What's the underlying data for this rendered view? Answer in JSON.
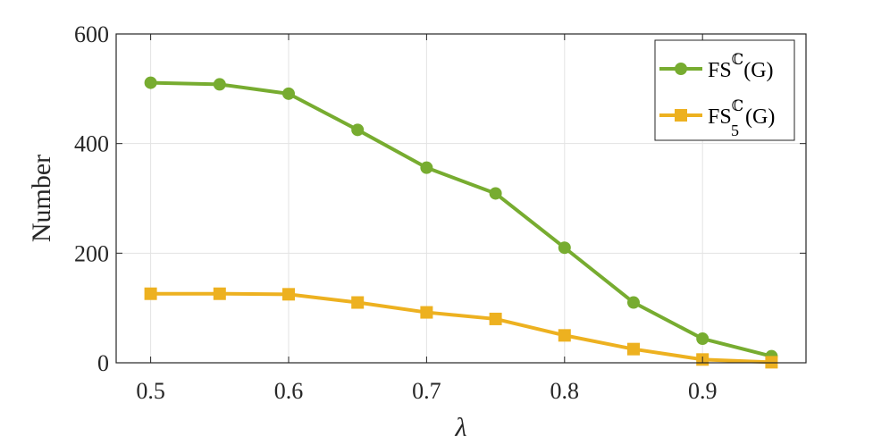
{
  "chart_data": {
    "type": "line",
    "x": [
      0.5,
      0.55,
      0.6,
      0.65,
      0.7,
      0.75,
      0.8,
      0.85,
      0.9,
      0.95
    ],
    "series": [
      {
        "name": "FSℂ(G)",
        "name_main": "FS",
        "name_sup": "ℂ",
        "name_sub": "",
        "name_tail": "(G)",
        "color": "#77AC30",
        "marker": "circle",
        "values": [
          511,
          508,
          491,
          425,
          356,
          309,
          210,
          110,
          44,
          12
        ]
      },
      {
        "name": "FS₅ℂ(G)",
        "name_main": "FS",
        "name_sup": "ℂ",
        "name_sub": "5",
        "name_tail": "(G)",
        "color": "#EDB120",
        "marker": "square",
        "values": [
          126,
          126,
          125,
          110,
          92,
          80,
          50,
          25,
          6,
          1
        ]
      }
    ],
    "xlabel": "λ",
    "ylabel": "Number",
    "xlim": [
      0.475,
      0.975
    ],
    "ylim": [
      0,
      600
    ],
    "xticks": [
      0.5,
      0.6,
      0.7,
      0.8,
      0.9
    ],
    "xtick_labels": [
      "0.5",
      "0.6",
      "0.7",
      "0.8",
      "0.9"
    ],
    "yticks": [
      0,
      200,
      400,
      600
    ],
    "ytick_labels": [
      "0",
      "200",
      "400",
      "600"
    ],
    "grid": true,
    "legend_position": "top-right"
  }
}
